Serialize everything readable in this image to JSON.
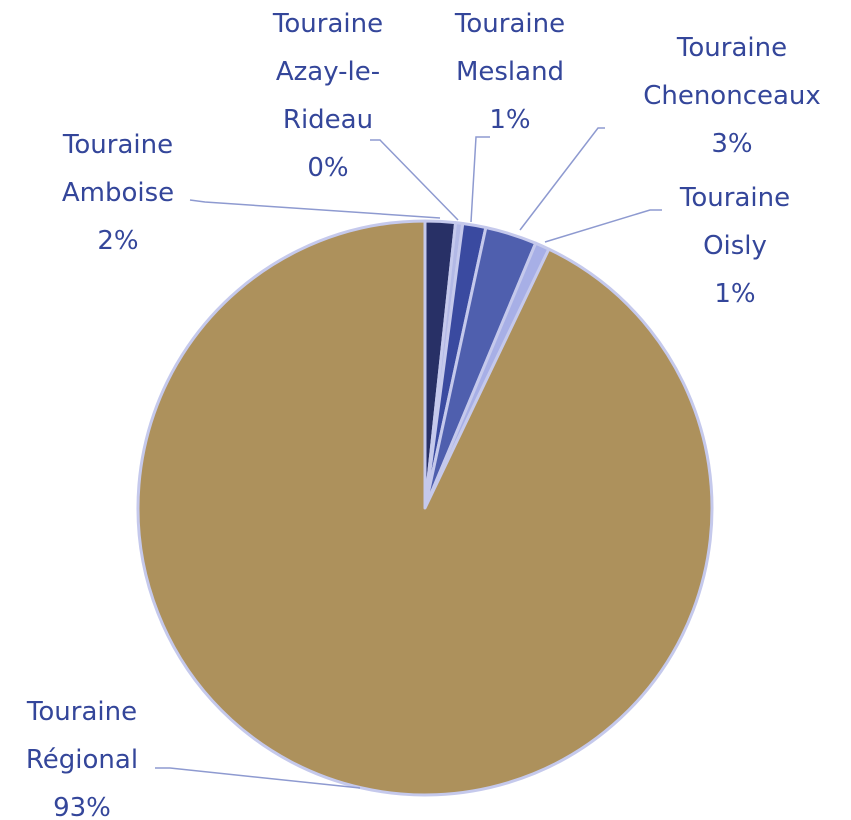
{
  "chart_data": {
    "type": "pie",
    "categories": [
      "Touraine Amboise",
      "Touraine Azay-le-Rideau",
      "Touraine Mesland",
      "Touraine Chenonceaux",
      "Touraine Oisly",
      "Touraine Régional"
    ],
    "values": [
      1.7,
      0.4,
      1.3,
      2.9,
      0.8,
      92.9
    ],
    "value_labels": [
      "2%",
      "0%",
      "1%",
      "3%",
      "1%",
      "93%"
    ],
    "colors": [
      "#283066",
      "#b3b9e6",
      "#3a4aa0",
      "#4f5fae",
      "#a7afe6",
      "#ad915c"
    ]
  }
}
